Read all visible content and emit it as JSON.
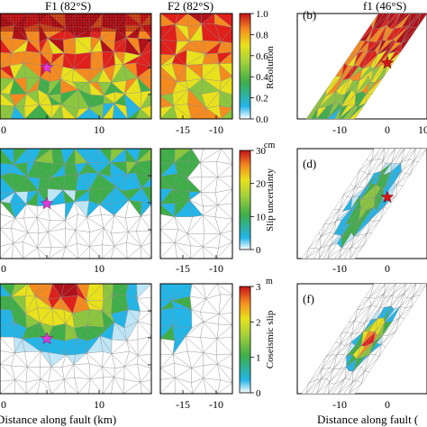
{
  "panels": {
    "f1_title": "F1 (82°S)",
    "f2_title": "F2 (82°S)",
    "f1s_title": "f1 (46°S)",
    "label_b": "(b)",
    "label_d": "(d)",
    "label_f": "(f)"
  },
  "colorbars": [
    {
      "label": "Resolution",
      "unit": "",
      "ticks": [
        "1.0",
        "0.8",
        "0.6",
        "0.4",
        "0.2",
        "0.0"
      ]
    },
    {
      "label": "Slip uncertainty",
      "unit": "cm",
      "ticks": [
        "30",
        "20",
        "10",
        "0"
      ]
    },
    {
      "label": "Coseismic slip",
      "unit": "m",
      "ticks": [
        "3",
        "2",
        "1",
        "0"
      ]
    }
  ],
  "axes": {
    "left_xticks": [
      "0",
      "10"
    ],
    "mid_xticks": [
      "-15",
      "-10"
    ],
    "right_xticks": [
      "-10",
      "0",
      "10"
    ],
    "left_xlabel": "Distance along fault (km)",
    "right_xlabel": "Distance along fault ("
  },
  "colors": {
    "red": "#e0201b",
    "orange": "#f58a1f",
    "yellow": "#e8e11c",
    "green": "#3fae49",
    "cyan": "#22b5e8",
    "star_magenta": "#e03ad8",
    "star_red": "#d4141b"
  }
}
